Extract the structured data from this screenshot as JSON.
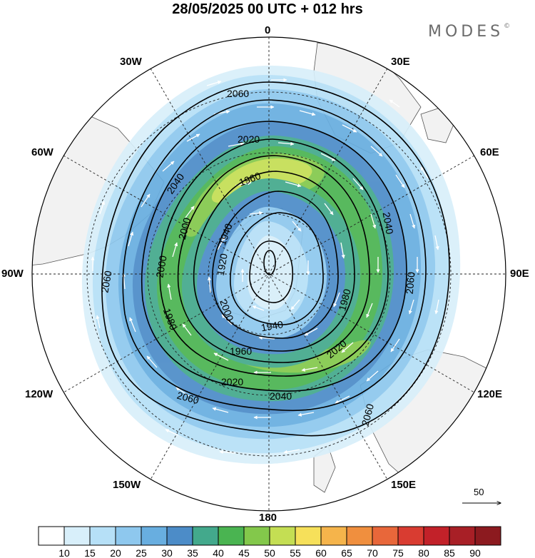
{
  "header": {
    "title": "28/05/2025  00 UTC  + 012 hrs",
    "brand": "MODES",
    "brand_mark": "©"
  },
  "map": {
    "projection": "south-polar-stereographic",
    "longitude_labels": {
      "lon_0": "0",
      "lon_30e": "30E",
      "lon_60e": "60E",
      "lon_90e": "90E",
      "lon_120e": "120E",
      "lon_150e": "150E",
      "lon_180": "180",
      "lon_150w": "150W",
      "lon_120w": "120W",
      "lon_90w": "90W",
      "lon_60w": "60W",
      "lon_30w": "30W"
    },
    "contour_labels": {
      "c1": "2060",
      "c2": "2020",
      "c3": "2040",
      "c4": "1960",
      "c5": "1940",
      "c6": "2040",
      "c7": "2000",
      "c8": "2060",
      "c9": "1920",
      "c10": "2000",
      "c11": "1980",
      "c12": "1980",
      "c13": "2000",
      "c14": "1940",
      "c15": "1960",
      "c16": "2020",
      "c17": "2020",
      "c18": "2040",
      "c19": "2060",
      "c20": "2060",
      "c21": "2060"
    },
    "land_color": "#f2f2f2",
    "reference_vector": "50"
  },
  "legend": {
    "ticks": [
      "10",
      "15",
      "20",
      "25",
      "30",
      "35",
      "40",
      "45",
      "50",
      "55",
      "60",
      "65",
      "70",
      "75",
      "80",
      "85",
      "90"
    ],
    "colors": [
      "#ffffff",
      "#d8effa",
      "#b6e0f7",
      "#8ec8ee",
      "#68aee0",
      "#4c8cc8",
      "#43a98c",
      "#4ab451",
      "#83c84b",
      "#c4de53",
      "#f6e05a",
      "#f5b44b",
      "#f08f3e",
      "#e8673a",
      "#d93c31",
      "#c22129",
      "#a81f26",
      "#8c1a1f"
    ]
  }
}
